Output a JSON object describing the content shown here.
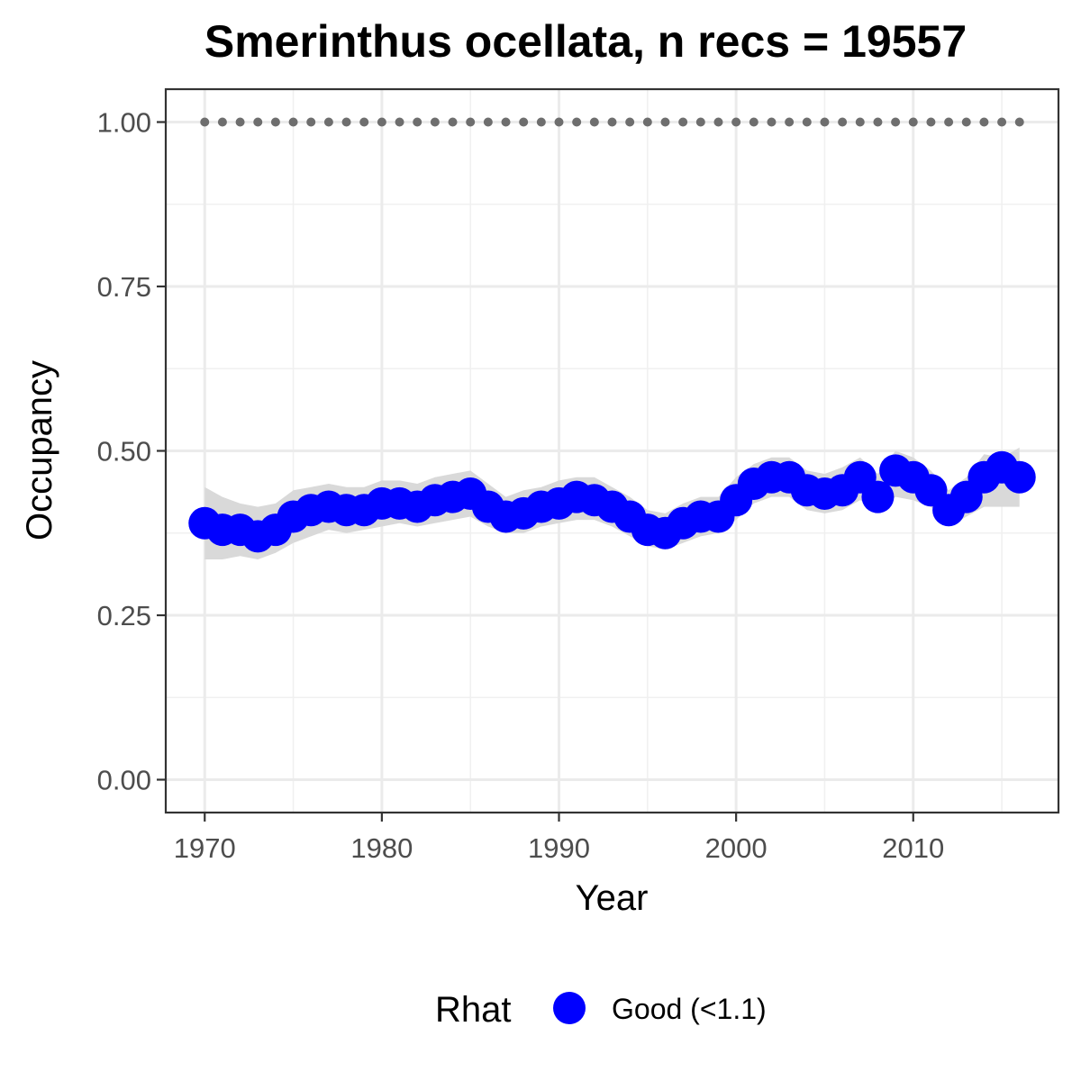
{
  "chart_data": {
    "type": "line",
    "title": "Smerinthus ocellata, n recs = 19557",
    "xlabel": "Year",
    "ylabel": "Occupancy",
    "xlim": [
      1967.8,
      2018.2
    ],
    "ylim": [
      -0.05,
      1.05
    ],
    "x_ticks": [
      1970,
      1980,
      1990,
      2000,
      2010
    ],
    "x_tick_labels": [
      "1970",
      "1980",
      "1990",
      "2000",
      "2010"
    ],
    "y_ticks": [
      0.0,
      0.25,
      0.5,
      0.75,
      1.0
    ],
    "y_tick_labels": [
      "0.00",
      "0.25",
      "0.50",
      "0.75",
      "1.00"
    ],
    "grid": true,
    "legend": {
      "position": "bottom",
      "title": "Rhat",
      "entries": [
        {
          "label": "Good (<1.1)",
          "color": "#0000ff"
        }
      ]
    },
    "colors": {
      "points": "#0000ff",
      "ribbon": "#d9d9d9",
      "reference": "#6e6e6e"
    },
    "x": [
      1970,
      1971,
      1972,
      1973,
      1974,
      1975,
      1976,
      1977,
      1978,
      1979,
      1980,
      1981,
      1982,
      1983,
      1984,
      1985,
      1986,
      1987,
      1988,
      1989,
      1990,
      1991,
      1992,
      1993,
      1994,
      1995,
      1996,
      1997,
      1998,
      1999,
      2000,
      2001,
      2002,
      2003,
      2004,
      2005,
      2006,
      2007,
      2008,
      2009,
      2010,
      2011,
      2012,
      2013,
      2014,
      2015,
      2016
    ],
    "series": [
      {
        "values": [
          0.39,
          0.38,
          0.38,
          0.37,
          0.38,
          0.4,
          0.41,
          0.415,
          0.41,
          0.41,
          0.42,
          0.42,
          0.415,
          0.425,
          0.43,
          0.435,
          0.415,
          0.4,
          0.405,
          0.415,
          0.42,
          0.43,
          0.425,
          0.415,
          0.4,
          0.38,
          0.375,
          0.39,
          0.4,
          0.4,
          0.425,
          0.45,
          0.46,
          0.46,
          0.44,
          0.435,
          0.44,
          0.46,
          0.43,
          0.47,
          0.46,
          0.44,
          0.41,
          0.43,
          0.46,
          0.475,
          0.46
        ],
        "lower": [
          0.335,
          0.335,
          0.34,
          0.335,
          0.345,
          0.36,
          0.37,
          0.38,
          0.375,
          0.38,
          0.385,
          0.39,
          0.385,
          0.39,
          0.395,
          0.4,
          0.385,
          0.375,
          0.375,
          0.385,
          0.39,
          0.395,
          0.395,
          0.385,
          0.37,
          0.355,
          0.35,
          0.36,
          0.37,
          0.375,
          0.395,
          0.42,
          0.43,
          0.43,
          0.41,
          0.405,
          0.41,
          0.425,
          0.41,
          0.43,
          0.425,
          0.415,
          0.385,
          0.4,
          0.415,
          0.415,
          0.415
        ],
        "upper": [
          0.445,
          0.43,
          0.42,
          0.415,
          0.42,
          0.44,
          0.445,
          0.45,
          0.445,
          0.445,
          0.455,
          0.455,
          0.45,
          0.46,
          0.465,
          0.47,
          0.45,
          0.43,
          0.44,
          0.445,
          0.455,
          0.46,
          0.46,
          0.445,
          0.43,
          0.41,
          0.405,
          0.42,
          0.43,
          0.43,
          0.46,
          0.48,
          0.49,
          0.49,
          0.47,
          0.465,
          0.475,
          0.49,
          0.465,
          0.5,
          0.49,
          0.47,
          0.44,
          0.46,
          0.495,
          0.49,
          0.505
        ]
      },
      {
        "values": [
          1,
          1,
          1,
          1,
          1,
          1,
          1,
          1,
          1,
          1,
          1,
          1,
          1,
          1,
          1,
          1,
          1,
          1,
          1,
          1,
          1,
          1,
          1,
          1,
          1,
          1,
          1,
          1,
          1,
          1,
          1,
          1,
          1,
          1,
          1,
          1,
          1,
          1,
          1,
          1,
          1,
          1,
          1,
          1,
          1,
          1,
          1
        ]
      }
    ]
  }
}
